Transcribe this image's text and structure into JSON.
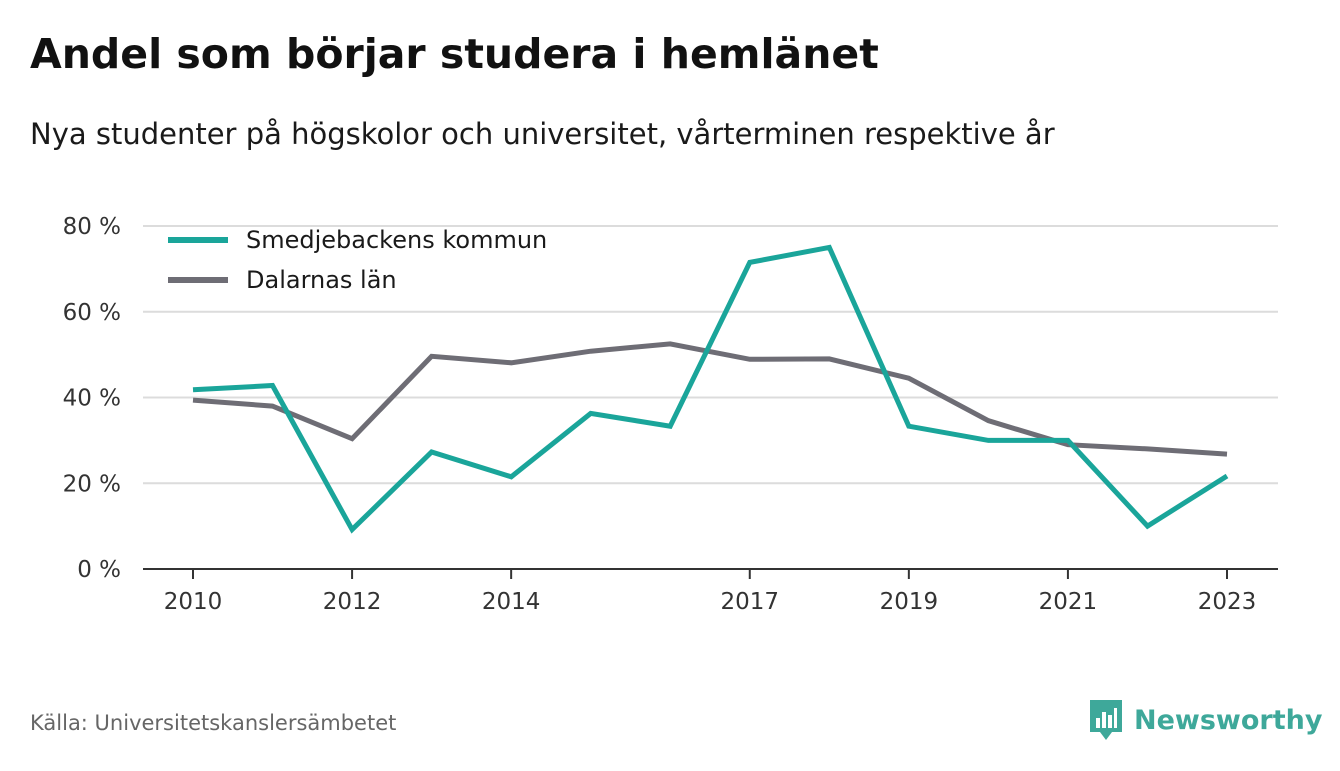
{
  "header": {
    "title": "Andel som börjar studera i hemlänet",
    "subtitle": "Nya studenter på högskolor och universitet, vårterminen respektive år"
  },
  "footer": {
    "source": "Källa: Universitetskanslersämbetet",
    "brand": "Newsworthy",
    "brand_icon": "bar-chart-speech-bubble-icon"
  },
  "colors": {
    "series_primary": "#1aa59a",
    "series_secondary": "#6e6d75",
    "grid": "#dcdcdc",
    "axis": "#333333",
    "brand": "#3ea89a"
  },
  "chart_data": {
    "type": "line",
    "x": [
      2010,
      2011,
      2012,
      2013,
      2014,
      2015,
      2016,
      2017,
      2018,
      2019,
      2020,
      2021,
      2022,
      2023
    ],
    "xticks": [
      2010,
      2012,
      2014,
      2017,
      2019,
      2021,
      2023
    ],
    "xtick_labels": [
      "2010",
      "2012",
      "2014",
      "2017",
      "2019",
      "2021",
      "2023"
    ],
    "ylim": [
      0,
      80
    ],
    "yticks": [
      0,
      20,
      40,
      60,
      80
    ],
    "ytick_labels": [
      "0 %",
      "20 %",
      "40 %",
      "60 %",
      "80 %"
    ],
    "grid": true,
    "legend_position": "top-left",
    "series": [
      {
        "name": "Smedjebackens kommun",
        "color": "#1aa59a",
        "values": [
          41.8,
          42.8,
          9.2,
          27.3,
          21.5,
          36.3,
          33.3,
          71.5,
          75.0,
          33.3,
          30.0,
          30.0,
          10.0,
          21.7
        ]
      },
      {
        "name": "Dalarnas län",
        "color": "#6e6d75",
        "values": [
          39.4,
          38.0,
          30.4,
          49.6,
          48.1,
          50.8,
          52.5,
          48.9,
          49.0,
          44.5,
          34.6,
          29.0,
          28.0,
          26.8
        ]
      }
    ]
  }
}
